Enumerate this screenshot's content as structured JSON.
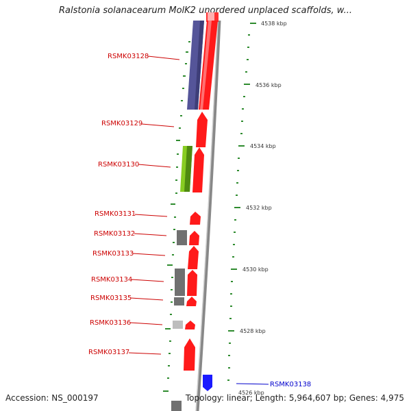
{
  "title": "Ralstonia solanacearum MolK2 unordered unplaced scaffolds, w...",
  "footer": {
    "accession": "Accession: NS_000197",
    "topology": "Topology: linear; Length: 5,964,607 bp; Genes: 4,975"
  },
  "colors": {
    "forward_gene": "#ff1a1a",
    "reverse_gene": "#555599",
    "label_red": "#cc0000",
    "label_blue": "#0000cc",
    "tick_green": "#2e8b2e",
    "highlight_blue": "#1a1aff",
    "rna_green": "#88cc22",
    "grey_feature": "#707070"
  },
  "kbp_ticks": [
    "4538 kbp",
    "4536 kbp",
    "4534 kbp",
    "4532 kbp",
    "4530 kbp",
    "4528 kbp",
    "4526 kbp"
  ],
  "genes": [
    {
      "id": "RSMK03128",
      "color": "red"
    },
    {
      "id": "RSMK03129",
      "color": "red"
    },
    {
      "id": "RSMK03130",
      "color": "red"
    },
    {
      "id": "RSMK03131",
      "color": "red"
    },
    {
      "id": "RSMK03132",
      "color": "red"
    },
    {
      "id": "RSMK03133",
      "color": "red"
    },
    {
      "id": "RSMK03134",
      "color": "red"
    },
    {
      "id": "RSMK03135",
      "color": "red"
    },
    {
      "id": "RSMK03136",
      "color": "red"
    },
    {
      "id": "RSMK03137",
      "color": "red"
    },
    {
      "id": "RSMK03138",
      "color": "blue"
    }
  ]
}
